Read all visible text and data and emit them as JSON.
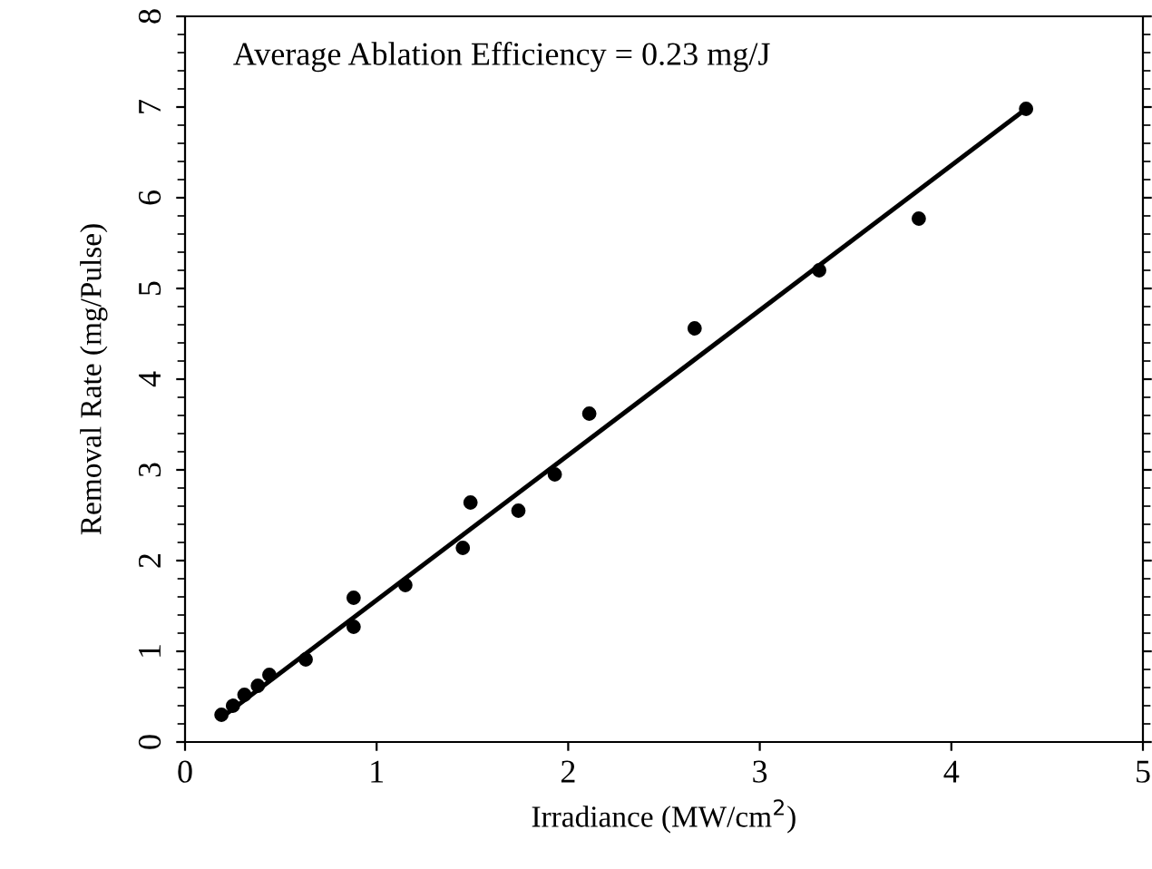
{
  "chart_data": {
    "type": "scatter",
    "xlabel": "Irradiance (MW/cm$^{2}$)",
    "ylabel": "Removal Rate (mg/Pulse)",
    "annotations": [
      "Average Ablation Efficiency = 0.23 mg/J"
    ],
    "xlim": [
      0,
      5
    ],
    "xticks": [
      0,
      1,
      2,
      3,
      4,
      5
    ],
    "ylim": [
      0,
      8
    ],
    "yticks": [
      0,
      1,
      2,
      3,
      4,
      5,
      6,
      7,
      8
    ],
    "grid": false,
    "legend": false,
    "series": [
      {
        "marker": "circle",
        "color": "#000000",
        "x": [
          0.19,
          0.25,
          0.31,
          0.38,
          0.44,
          0.63,
          0.88,
          0.88,
          1.15,
          1.45,
          1.49,
          1.74,
          1.93,
          2.11,
          2.66,
          3.31,
          3.83,
          4.39
        ],
        "values": [
          0.3,
          0.4,
          0.52,
          0.62,
          0.74,
          0.91,
          1.59,
          1.27,
          1.73,
          2.14,
          2.64,
          2.55,
          2.95,
          3.62,
          4.56,
          5.2,
          5.77,
          6.98
        ]
      },
      {
        "type": "line",
        "marker": "none",
        "line_style": "solid",
        "color": "#000000",
        "x": [
          0.19,
          4.39
        ],
        "values": [
          0.27,
          6.98
        ]
      }
    ]
  }
}
